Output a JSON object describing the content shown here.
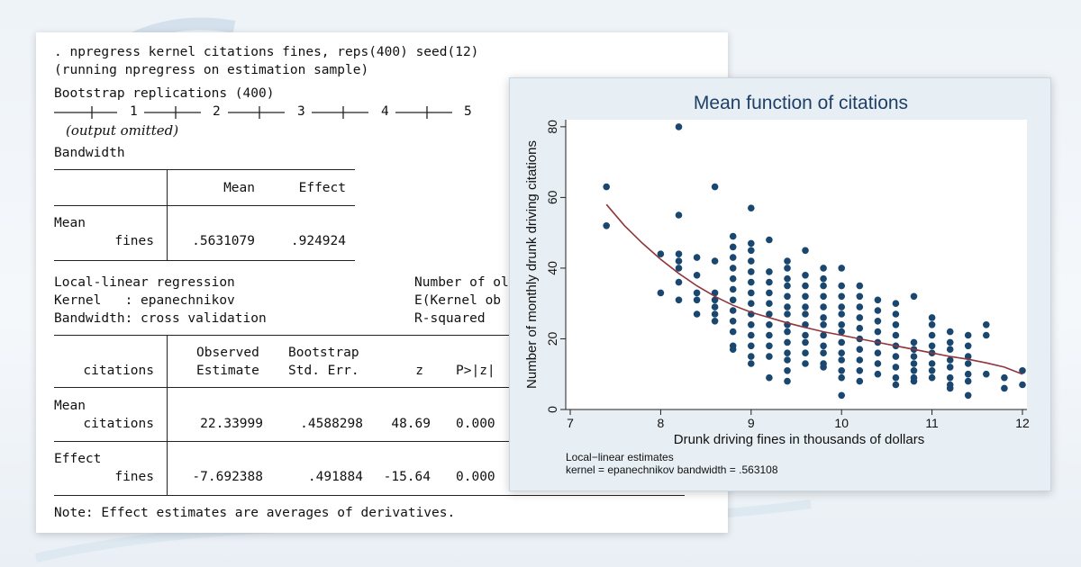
{
  "output": {
    "command": ". npregress kernel citations fines, reps(400) seed(12)",
    "running": "(running npregress on estimation sample)",
    "bootstrap_header": "Bootstrap replications (400)",
    "bootstrap_ticks": [
      "1",
      "2",
      "3",
      "4",
      "5"
    ],
    "output_omitted": "(output omitted)",
    "bandwidth_label": "Bandwidth",
    "bw_table": {
      "col_mean": "Mean",
      "col_effect": "Effect",
      "row_group": "Mean",
      "row_label": "fines",
      "mean_value": ".5631079",
      "effect_value": ".924924"
    },
    "llr": {
      "title": "Local-linear regression",
      "kernel": "Kernel   : epanechnikov",
      "bandwidth": "Bandwidth: cross validation",
      "right1": "Number of ol",
      "right2": "E(Kernel ob",
      "right3": "R-squared"
    },
    "reg_table": {
      "dep_var": "citations",
      "h_observed": "Observed",
      "h_estimate": "Estimate",
      "h_bootstrap": "Bootstrap",
      "h_stderr": "Std. Err.",
      "h_z": "z",
      "h_p": "P>|z|",
      "mean_group": "Mean",
      "mean_row": {
        "label": "citations",
        "estimate": "22.33999",
        "se": ".4588298",
        "z": "48.69",
        "p": "0.000"
      },
      "effect_group": "Effect",
      "effect_row": {
        "label": "fines",
        "estimate": "-7.692388",
        "se": ".491884",
        "z": "-15.64",
        "p": "0.000"
      }
    },
    "note": "Note: Effect estimates are averages of derivatives."
  },
  "chart_data": {
    "type": "scatter",
    "title": "Mean function of citations",
    "xlabel": "Drunk driving fines in thousands of dollars",
    "ylabel": "Number of monthly drunk driving citations",
    "xlim": [
      6.95,
      12.05
    ],
    "ylim": [
      0,
      82
    ],
    "xticks": [
      7,
      8,
      9,
      10,
      11,
      12
    ],
    "yticks": [
      0,
      20,
      40,
      60,
      80
    ],
    "grid": false,
    "notes": [
      "Local−linear estimates",
      "kernel = epanechnikov bandwidth = .563108"
    ],
    "colors": {
      "points": "#1a476f",
      "fit": "#90353b",
      "title": "#1e3f66",
      "panel": "#e8eff4"
    },
    "series": [
      {
        "type": "scatter",
        "points": [
          [
            7.4,
            63
          ],
          [
            7.4,
            52
          ],
          [
            8.0,
            44
          ],
          [
            8.0,
            33
          ],
          [
            8.2,
            80
          ],
          [
            8.2,
            55
          ],
          [
            8.2,
            44
          ],
          [
            8.2,
            42
          ],
          [
            8.2,
            40
          ],
          [
            8.2,
            36
          ],
          [
            8.2,
            31
          ],
          [
            8.4,
            43
          ],
          [
            8.4,
            38
          ],
          [
            8.4,
            33
          ],
          [
            8.4,
            31
          ],
          [
            8.4,
            27
          ],
          [
            8.6,
            63
          ],
          [
            8.6,
            42
          ],
          [
            8.6,
            33
          ],
          [
            8.6,
            31
          ],
          [
            8.6,
            29
          ],
          [
            8.6,
            27
          ],
          [
            8.6,
            25
          ],
          [
            8.8,
            49
          ],
          [
            8.8,
            46
          ],
          [
            8.8,
            43
          ],
          [
            8.8,
            40
          ],
          [
            8.8,
            37
          ],
          [
            8.8,
            34
          ],
          [
            8.8,
            31
          ],
          [
            8.8,
            28
          ],
          [
            8.8,
            25
          ],
          [
            8.8,
            22
          ],
          [
            8.8,
            18
          ],
          [
            8.8,
            17
          ],
          [
            9.0,
            57
          ],
          [
            9.0,
            47
          ],
          [
            9.0,
            45
          ],
          [
            9.0,
            42
          ],
          [
            9.0,
            39
          ],
          [
            9.0,
            36
          ],
          [
            9.0,
            33
          ],
          [
            9.0,
            30
          ],
          [
            9.0,
            27
          ],
          [
            9.0,
            24
          ],
          [
            9.0,
            21
          ],
          [
            9.0,
            18
          ],
          [
            9.0,
            15
          ],
          [
            9.0,
            13
          ],
          [
            9.2,
            48
          ],
          [
            9.2,
            39
          ],
          [
            9.2,
            36
          ],
          [
            9.2,
            33
          ],
          [
            9.2,
            30
          ],
          [
            9.2,
            27
          ],
          [
            9.2,
            24
          ],
          [
            9.2,
            21
          ],
          [
            9.2,
            18
          ],
          [
            9.2,
            15
          ],
          [
            9.2,
            9
          ],
          [
            9.4,
            42
          ],
          [
            9.4,
            40
          ],
          [
            9.4,
            37
          ],
          [
            9.4,
            35
          ],
          [
            9.4,
            32
          ],
          [
            9.4,
            29
          ],
          [
            9.4,
            27
          ],
          [
            9.4,
            24
          ],
          [
            9.4,
            22
          ],
          [
            9.4,
            19
          ],
          [
            9.4,
            16
          ],
          [
            9.4,
            14
          ],
          [
            9.4,
            11
          ],
          [
            9.4,
            8
          ],
          [
            9.6,
            45
          ],
          [
            9.6,
            38
          ],
          [
            9.6,
            35
          ],
          [
            9.6,
            32
          ],
          [
            9.6,
            29
          ],
          [
            9.6,
            27
          ],
          [
            9.6,
            24
          ],
          [
            9.6,
            21
          ],
          [
            9.6,
            19
          ],
          [
            9.6,
            16
          ],
          [
            9.6,
            13
          ],
          [
            9.8,
            40
          ],
          [
            9.8,
            37
          ],
          [
            9.8,
            35
          ],
          [
            9.8,
            32
          ],
          [
            9.8,
            29
          ],
          [
            9.8,
            26
          ],
          [
            9.8,
            24
          ],
          [
            9.8,
            21
          ],
          [
            9.8,
            18
          ],
          [
            9.8,
            16
          ],
          [
            9.8,
            13
          ],
          [
            9.8,
            12
          ],
          [
            10.0,
            40
          ],
          [
            10.0,
            35
          ],
          [
            10.0,
            32
          ],
          [
            10.0,
            29
          ],
          [
            10.0,
            27
          ],
          [
            10.0,
            24
          ],
          [
            10.0,
            22
          ],
          [
            10.0,
            19
          ],
          [
            10.0,
            16
          ],
          [
            10.0,
            14
          ],
          [
            10.0,
            11
          ],
          [
            10.0,
            9
          ],
          [
            10.0,
            4
          ],
          [
            10.2,
            35
          ],
          [
            10.2,
            32
          ],
          [
            10.2,
            29
          ],
          [
            10.2,
            26
          ],
          [
            10.2,
            23
          ],
          [
            10.2,
            20
          ],
          [
            10.2,
            17
          ],
          [
            10.2,
            14
          ],
          [
            10.2,
            11
          ],
          [
            10.2,
            8
          ],
          [
            10.4,
            31
          ],
          [
            10.4,
            28
          ],
          [
            10.4,
            25
          ],
          [
            10.4,
            22
          ],
          [
            10.4,
            19
          ],
          [
            10.4,
            16
          ],
          [
            10.4,
            13
          ],
          [
            10.4,
            10
          ],
          [
            10.6,
            30
          ],
          [
            10.6,
            27
          ],
          [
            10.6,
            24
          ],
          [
            10.6,
            21
          ],
          [
            10.6,
            18
          ],
          [
            10.6,
            15
          ],
          [
            10.6,
            12
          ],
          [
            10.6,
            9
          ],
          [
            10.6,
            7
          ],
          [
            10.8,
            32
          ],
          [
            10.8,
            19
          ],
          [
            10.8,
            17
          ],
          [
            10.8,
            15
          ],
          [
            10.8,
            13
          ],
          [
            10.8,
            11
          ],
          [
            10.8,
            9
          ],
          [
            10.8,
            8
          ],
          [
            11.0,
            26
          ],
          [
            11.0,
            24
          ],
          [
            11.0,
            21
          ],
          [
            11.0,
            18
          ],
          [
            11.0,
            16
          ],
          [
            11.0,
            13
          ],
          [
            11.0,
            11
          ],
          [
            11.0,
            9
          ],
          [
            11.2,
            22
          ],
          [
            11.2,
            19
          ],
          [
            11.2,
            17
          ],
          [
            11.2,
            14
          ],
          [
            11.2,
            12
          ],
          [
            11.2,
            9
          ],
          [
            11.2,
            7
          ],
          [
            11.2,
            6
          ],
          [
            11.4,
            21
          ],
          [
            11.4,
            18
          ],
          [
            11.4,
            15
          ],
          [
            11.4,
            13
          ],
          [
            11.4,
            10
          ],
          [
            11.4,
            8
          ],
          [
            11.4,
            4
          ],
          [
            11.6,
            24
          ],
          [
            11.6,
            21
          ],
          [
            11.6,
            10
          ],
          [
            11.8,
            9
          ],
          [
            11.8,
            6
          ],
          [
            12.0,
            11
          ],
          [
            12.0,
            7
          ]
        ]
      },
      {
        "type": "line",
        "points": [
          [
            7.4,
            58
          ],
          [
            7.6,
            52
          ],
          [
            7.8,
            47
          ],
          [
            8.0,
            42.5
          ],
          [
            8.2,
            38.5
          ],
          [
            8.4,
            35
          ],
          [
            8.6,
            32
          ],
          [
            8.8,
            29.5
          ],
          [
            9.0,
            27.5
          ],
          [
            9.2,
            26
          ],
          [
            9.4,
            24.5
          ],
          [
            9.6,
            23.2
          ],
          [
            9.8,
            22
          ],
          [
            10.0,
            21
          ],
          [
            10.2,
            20
          ],
          [
            10.4,
            19
          ],
          [
            10.6,
            18
          ],
          [
            10.8,
            17
          ],
          [
            11.0,
            16
          ],
          [
            11.2,
            15
          ],
          [
            11.4,
            14.2
          ],
          [
            11.6,
            13.2
          ],
          [
            11.8,
            12
          ],
          [
            12.0,
            10
          ]
        ]
      }
    ]
  }
}
